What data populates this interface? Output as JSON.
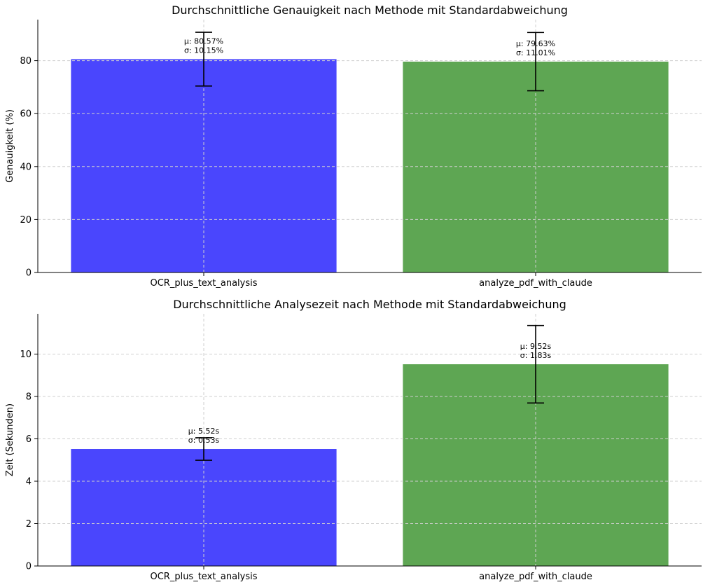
{
  "chart_data": [
    {
      "type": "bar",
      "title": "Durchschnittliche Genauigkeit nach Methode mit Standardabweichung",
      "xlabel": "",
      "ylabel": "Genauigkeit (%)",
      "categories": [
        "OCR_plus_text_analysis",
        "analyze_pdf_with_claude"
      ],
      "values": [
        80.57,
        79.63
      ],
      "errors": [
        10.15,
        11.01
      ],
      "colors": [
        "#4a46fd",
        "#5ea653"
      ],
      "annotations": [
        [
          "μ: 80.57%",
          "σ: 10.15%"
        ],
        [
          "μ: 79.63%",
          "σ: 11.01%"
        ]
      ],
      "ylim": [
        0,
        95.5
      ],
      "yticks": [
        0,
        20,
        40,
        60,
        80
      ],
      "ytick_labels": [
        "0",
        "20",
        "40",
        "60",
        "80"
      ],
      "grid": true,
      "legend": "none"
    },
    {
      "type": "bar",
      "title": "Durchschnittliche Analysezeit nach Methode mit Standardabweichung",
      "xlabel": "",
      "ylabel": "Zeit (Sekunden)",
      "categories": [
        "OCR_plus_text_analysis",
        "analyze_pdf_with_claude"
      ],
      "values": [
        5.52,
        9.52
      ],
      "errors": [
        0.53,
        1.83
      ],
      "colors": [
        "#4a46fd",
        "#5ea653"
      ],
      "annotations": [
        [
          "μ: 5.52s",
          "σ: 0.53s"
        ],
        [
          "μ: 9.52s",
          "σ: 1.83s"
        ]
      ],
      "ylim": [
        0,
        11.9
      ],
      "yticks": [
        0,
        2,
        4,
        6,
        8,
        10
      ],
      "ytick_labels": [
        "0",
        "2",
        "4",
        "6",
        "8",
        "10"
      ],
      "grid": true,
      "legend": "none"
    }
  ]
}
